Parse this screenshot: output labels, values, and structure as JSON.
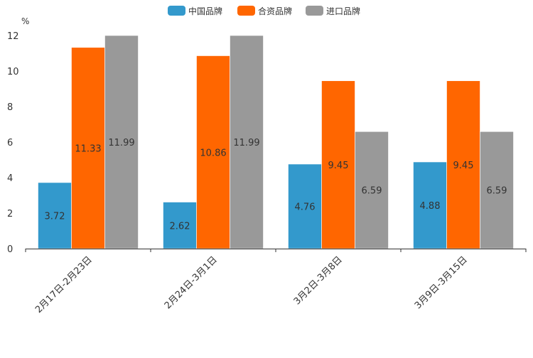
{
  "chart_data": {
    "type": "bar",
    "title": "",
    "ylabel": "%",
    "xlabel": "",
    "ylim": [
      0,
      12
    ],
    "yticks": [
      0,
      2,
      4,
      6,
      8,
      10,
      12
    ],
    "categories": [
      "2月17日-2月23日",
      "2月24日-3月1日",
      "3月2日-3月8日",
      "3月9日-3月15日"
    ],
    "series": [
      {
        "name": "中国品牌",
        "color": "#3399CC",
        "values": [
          3.72,
          2.62,
          4.76,
          4.88
        ]
      },
      {
        "name": "合资品牌",
        "color": "#FF6600",
        "values": [
          11.33,
          10.86,
          9.45,
          9.45
        ]
      },
      {
        "name": "进口品牌",
        "color": "#999999",
        "values": [
          11.99,
          11.99,
          6.59,
          6.59
        ]
      }
    ],
    "bar_top_values": [
      [
        3.72,
        2.62,
        4.76,
        4.88
      ],
      [
        11.33,
        10.86,
        9.45,
        9.45
      ],
      [
        12,
        12,
        6.59,
        6.59
      ]
    ],
    "legend_position": "top-center",
    "grid": false
  }
}
